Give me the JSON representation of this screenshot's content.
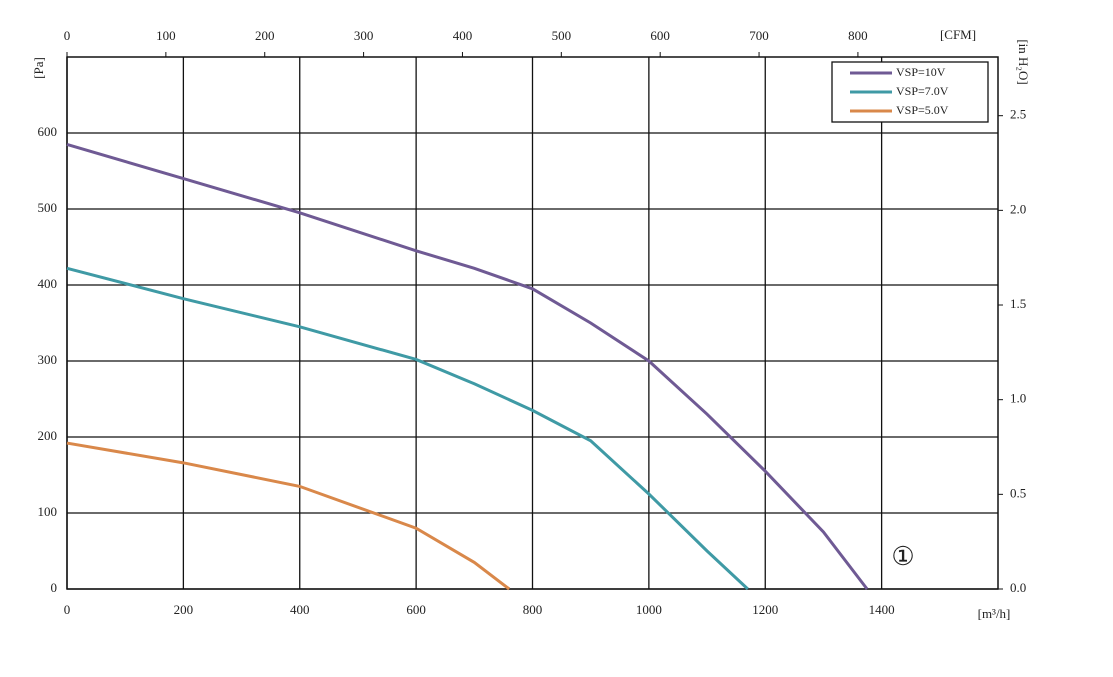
{
  "chart_data": {
    "type": "line",
    "x_label": "[m³/h]",
    "y_label": "[Pa]",
    "x2_label": "[CFM]",
    "y2_label": "[in H₂O]",
    "annotation": "①",
    "xlim": [
      0,
      1600
    ],
    "xticks": [
      0,
      200,
      400,
      600,
      800,
      1000,
      1200,
      1400
    ],
    "ylim": [
      0,
      700
    ],
    "yticks": [
      0,
      100,
      200,
      300,
      400,
      500,
      600
    ],
    "x2lim": [
      0,
      941.7
    ],
    "x2ticks": [
      0,
      100,
      200,
      300,
      400,
      500,
      600,
      700,
      800
    ],
    "y2lim": [
      0,
      2.81
    ],
    "y2ticks": [
      {
        "value": 0,
        "label": "0.0"
      },
      0.5,
      {
        "value": 1,
        "label": "1.0"
      },
      1.5,
      {
        "value": 2,
        "label": "2.0"
      },
      2.5
    ],
    "grid": true,
    "legend": "top-right",
    "series": [
      {
        "name": "VSP=10V",
        "color": "#6f5a94",
        "x": [
          0,
          200,
          400,
          600,
          700,
          800,
          900,
          1000,
          1100,
          1200,
          1300,
          1375
        ],
        "values": [
          585,
          540,
          495,
          445,
          422,
          395,
          350,
          300,
          230,
          155,
          75,
          0
        ]
      },
      {
        "name": "VSP=7.0V",
        "color": "#3f9aa5",
        "x": [
          0,
          200,
          400,
          600,
          700,
          800,
          900,
          1000,
          1100,
          1170
        ],
        "values": [
          422,
          382,
          345,
          302,
          270,
          235,
          195,
          125,
          50,
          0
        ]
      },
      {
        "name": "VSP=5.0V",
        "color": "#d9884a",
        "x": [
          0,
          200,
          400,
          600,
          700,
          760
        ],
        "values": [
          192,
          166,
          135,
          80,
          35,
          0
        ]
      }
    ]
  }
}
